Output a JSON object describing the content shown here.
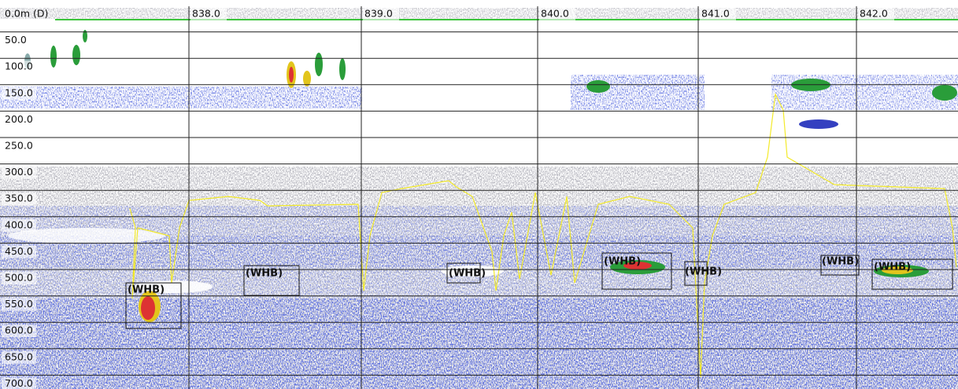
{
  "echogram": {
    "depth_labels": [
      "0.0m (D)",
      "50.0",
      "100.0",
      "150.0",
      "200.0",
      "250.0",
      "300.0",
      "350.0",
      "400.0",
      "450.0",
      "500.0",
      "550.0",
      "600.0",
      "650.0",
      "700.0"
    ],
    "distance_labels": [
      "838.0",
      "839.0",
      "840.0",
      "841.0",
      "842.0"
    ],
    "regions": [
      "(WHB)",
      "(WHB)",
      "(WHB)",
      "(WHB)",
      "(WHB)",
      "(WHB)",
      "(WHB)"
    ]
  }
}
